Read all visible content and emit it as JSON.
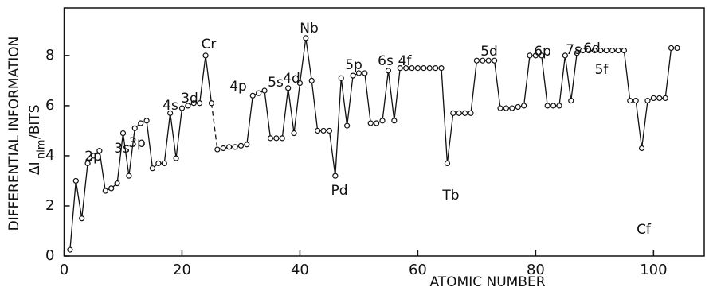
{
  "chart_data": {
    "type": "line",
    "x_label": "ATOMIC NUMBER",
    "y_label": {
      "line1": "DIFFERENTIAL INFORMATION",
      "symbol": "ΔI",
      "subscript": "nlm",
      "unit": "/BITS"
    },
    "x": [
      1,
      2,
      3,
      4,
      5,
      6,
      7,
      8,
      9,
      10,
      11,
      12,
      13,
      14,
      15,
      16,
      17,
      18,
      19,
      20,
      21,
      22,
      23,
      24,
      25,
      26,
      27,
      28,
      29,
      30,
      31,
      32,
      33,
      34,
      35,
      36,
      37,
      38,
      39,
      40,
      41,
      42,
      43,
      44,
      45,
      46,
      47,
      48,
      49,
      50,
      51,
      52,
      53,
      54,
      55,
      56,
      57,
      58,
      59,
      60,
      61,
      62,
      63,
      64,
      65,
      66,
      67,
      68,
      69,
      70,
      71,
      72,
      73,
      74,
      75,
      76,
      77,
      78,
      79,
      80,
      81,
      82,
      83,
      84,
      85,
      86,
      87,
      88,
      89,
      90,
      91,
      92,
      93,
      94,
      95,
      96,
      97,
      98,
      99,
      100,
      101,
      102,
      103,
      104
    ],
    "values": [
      0.25,
      3.0,
      1.5,
      3.7,
      4.0,
      4.2,
      2.6,
      2.7,
      2.9,
      4.9,
      3.2,
      5.1,
      5.3,
      5.4,
      3.5,
      3.7,
      3.7,
      5.7,
      3.9,
      5.9,
      6.0,
      6.1,
      6.1,
      8.0,
      6.1,
      4.25,
      4.3,
      4.35,
      4.35,
      4.4,
      4.45,
      6.4,
      6.5,
      6.6,
      4.7,
      4.7,
      4.7,
      6.7,
      4.9,
      6.9,
      8.7,
      7.0,
      5.0,
      5.0,
      5.0,
      3.2,
      7.1,
      5.2,
      7.2,
      7.3,
      7.3,
      5.3,
      5.3,
      5.4,
      7.4,
      5.4,
      7.5,
      7.5,
      7.5,
      7.5,
      7.5,
      7.5,
      7.5,
      7.5,
      3.7,
      5.7,
      5.7,
      5.7,
      5.7,
      7.8,
      7.8,
      7.8,
      7.8,
      5.9,
      5.9,
      5.9,
      5.95,
      6.0,
      8.0,
      8.0,
      8.0,
      6.0,
      6.0,
      6.0,
      8.0,
      6.2,
      8.1,
      8.2,
      8.2,
      8.2,
      8.2,
      8.2,
      8.2,
      8.2,
      8.2,
      6.2,
      6.2,
      4.3,
      6.2,
      6.3,
      6.3,
      6.3,
      8.3,
      8.3
    ],
    "dashed_segment": [
      25,
      26
    ],
    "color": "#111111",
    "xlim": [
      0,
      108.6
    ],
    "ylim": [
      0,
      9.9
    ],
    "xticks": [
      0,
      20,
      40,
      60,
      80,
      100
    ],
    "yticks": [
      0,
      2,
      4,
      6,
      8
    ],
    "annotations": [
      "2p",
      "3s",
      "3p",
      "4s",
      "3d",
      "Cr",
      "4p",
      "5s",
      "4d",
      "Nb",
      "Pd",
      "5p",
      "6s",
      "4f",
      "Tb",
      "5d",
      "6p",
      "7s",
      "6d",
      "5f",
      "Cf"
    ]
  }
}
